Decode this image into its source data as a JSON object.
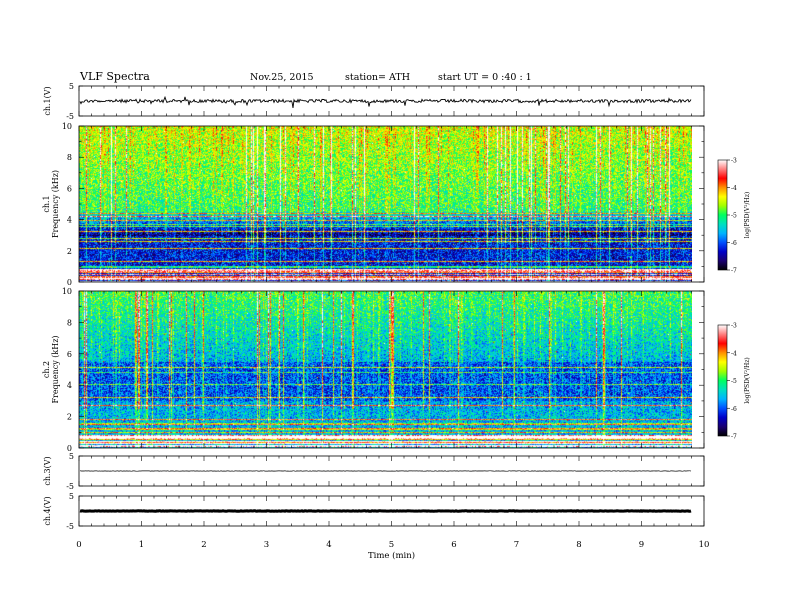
{
  "header": {
    "title": "VLF  Spectra",
    "date": "Nov.25, 2015",
    "station": "station= ATH",
    "start": "start  UT  =    0  :40 : 1"
  },
  "colors": {
    "colormap": [
      "#000000",
      "#1a0070",
      "#0000c8",
      "#0050ff",
      "#00b4ff",
      "#00e0c0",
      "#00ff60",
      "#a0ff00",
      "#ffff00",
      "#ff9000",
      "#ff0000",
      "#ff8080",
      "#ffffff"
    ],
    "waveform": "#000000",
    "frame": "#000000"
  },
  "chart_data": [
    {
      "type": "line",
      "panel": "ch1-waveform",
      "ylabel": "ch.1(V)",
      "yticks": [
        "5",
        "-5"
      ],
      "ylim": [
        -5,
        5
      ],
      "xlim": [
        0,
        10
      ],
      "description_level": 0
    },
    {
      "type": "heatmap",
      "panel": "ch1-spectrogram",
      "ylabel": "ch.1\nFrequency (kHz)",
      "ylabel_lines": [
        "ch.1",
        "Frequency (kHz)"
      ],
      "yticks": [
        "0",
        "2",
        "4",
        "6",
        "8",
        "10"
      ],
      "ylim": [
        0,
        10
      ],
      "xlim": [
        0,
        9.8
      ],
      "colorbar": {
        "label": "log(PSD(V²/Hz)",
        "ticks": [
          "-3",
          "-4",
          "-5",
          "-6",
          "-7"
        ],
        "range": [
          -7,
          -3
        ]
      }
    },
    {
      "type": "heatmap",
      "panel": "ch2-spectrogram",
      "ylabel_lines": [
        "ch.2",
        "Frequency (kHz)"
      ],
      "yticks": [
        "0",
        "2",
        "4",
        "6",
        "8",
        "10"
      ],
      "ylim": [
        0,
        10
      ],
      "xlim": [
        0,
        9.8
      ],
      "colorbar": {
        "label": "log(PSD(V²/Hz)",
        "ticks": [
          "-3",
          "-4",
          "-5",
          "-6",
          "-7"
        ],
        "range": [
          -7,
          -3
        ]
      }
    },
    {
      "type": "line",
      "panel": "ch3-waveform",
      "ylabel": "ch.3(V)",
      "yticks": [
        "5",
        "-5"
      ],
      "ylim": [
        -5,
        5
      ],
      "xlim": [
        0,
        10
      ],
      "level": 0
    },
    {
      "type": "line",
      "panel": "ch4-waveform",
      "ylabel": "ch.4(V)",
      "yticks": [
        "5",
        "-5"
      ],
      "ylim": [
        -5,
        5
      ],
      "xlim": [
        0,
        10
      ],
      "level": 0
    }
  ],
  "xaxis": {
    "label": "Time  (min)",
    "ticks": [
      "0",
      "1",
      "2",
      "3",
      "4",
      "5",
      "6",
      "7",
      "8",
      "9",
      "10"
    ]
  }
}
